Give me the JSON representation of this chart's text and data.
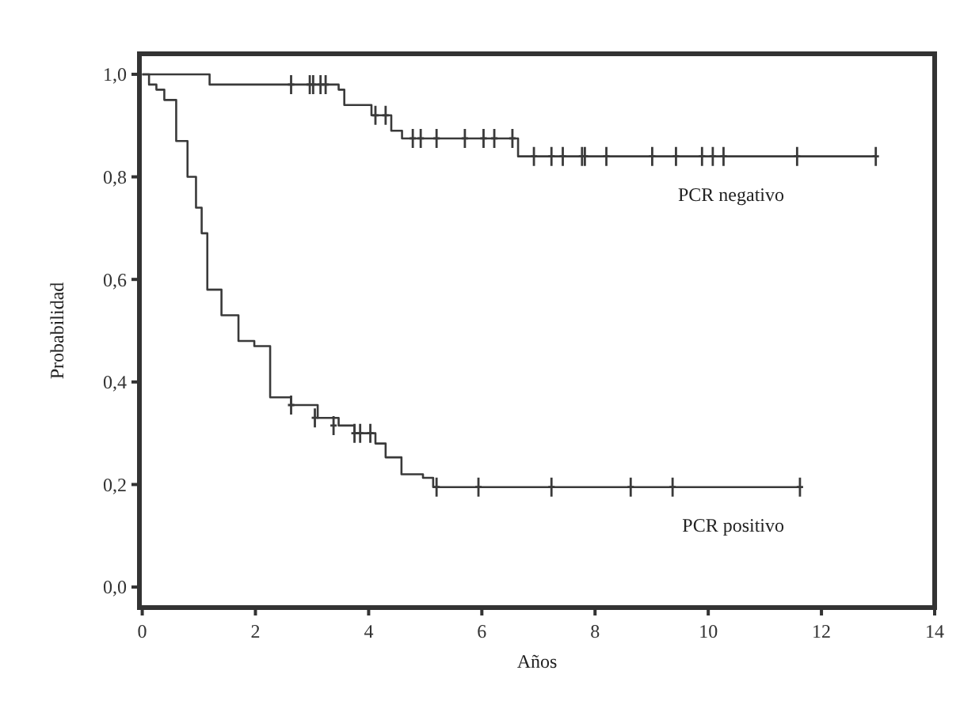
{
  "chart_data": {
    "type": "step",
    "xlabel": "Años",
    "ylabel": "Probabilidad",
    "xlim": [
      -0.05,
      14
    ],
    "ylim": [
      -0.04,
      1.04
    ],
    "xticks": [
      0,
      2,
      4,
      6,
      8,
      10,
      12,
      14
    ],
    "yticks": [
      {
        "value": 0,
        "label": "0,0"
      },
      {
        "value": 0.2,
        "label": "0,2"
      },
      {
        "value": 0.4,
        "label": "0,4"
      },
      {
        "value": 0.6,
        "label": "0,6"
      },
      {
        "value": 0.8,
        "label": "0,8"
      },
      {
        "value": 1,
        "label": "1,0"
      }
    ],
    "grid": false,
    "legend": "right",
    "line_style": "solid",
    "series": [
      {
        "name": "PCR negativo",
        "color": "#3a3a3a",
        "x": [
          0,
          1.19,
          3.47,
          3.57,
          4.05,
          4.4,
          4.59,
          6.64,
          12.96
        ],
        "values": [
          1,
          0.98,
          0.97,
          0.94,
          0.92,
          0.89,
          0.875,
          0.84,
          0.84
        ]
      },
      {
        "name": "PCR positivo",
        "color": "#3a3a3a",
        "x": [
          0,
          0.12,
          0.25,
          0.39,
          0.6,
          0.8,
          0.95,
          1.05,
          1.15,
          1.4,
          1.7,
          1.98,
          2.26,
          2.63,
          3.1,
          3.47,
          3.75,
          4.12,
          4.3,
          4.58,
          4.96,
          5.14,
          11.62
        ],
        "values": [
          1,
          0.98,
          0.97,
          0.95,
          0.87,
          0.8,
          0.74,
          0.69,
          0.58,
          0.53,
          0.48,
          0.47,
          0.37,
          0.355,
          0.33,
          0.315,
          0.3,
          0.28,
          0.253,
          0.22,
          0.213,
          0.195,
          0.195
        ]
      },
      {
        "type": "scatter",
        "marker": "cross",
        "color": "#3a3a3a",
        "x": [
          2.63,
          2.96,
          3.02,
          3.15,
          3.24,
          4.12,
          4.3,
          4.78,
          4.92,
          5.2,
          5.7,
          6.03,
          6.22,
          6.54,
          6.92,
          7.23,
          7.43,
          7.77,
          7.82,
          8.2,
          9.01,
          9.43,
          9.89,
          10.08,
          10.27,
          11.57,
          12.96
        ],
        "values": [
          0.98,
          0.98,
          0.98,
          0.98,
          0.98,
          0.92,
          0.92,
          0.875,
          0.875,
          0.875,
          0.875,
          0.875,
          0.875,
          0.875,
          0.84,
          0.84,
          0.84,
          0.84,
          0.84,
          0.84,
          0.84,
          0.84,
          0.84,
          0.84,
          0.84,
          0.84,
          0.84
        ]
      },
      {
        "type": "scatter",
        "marker": "cross",
        "color": "#3a3a3a",
        "x": [
          2.63,
          3.05,
          3.38,
          3.75,
          3.85,
          4.03,
          5.2,
          5.94,
          7.23,
          8.63,
          9.37,
          11.62
        ],
        "values": [
          0.355,
          0.33,
          0.315,
          0.3,
          0.3,
          0.3,
          0.195,
          0.195,
          0.195,
          0.195,
          0.195,
          0.195
        ]
      }
    ]
  }
}
